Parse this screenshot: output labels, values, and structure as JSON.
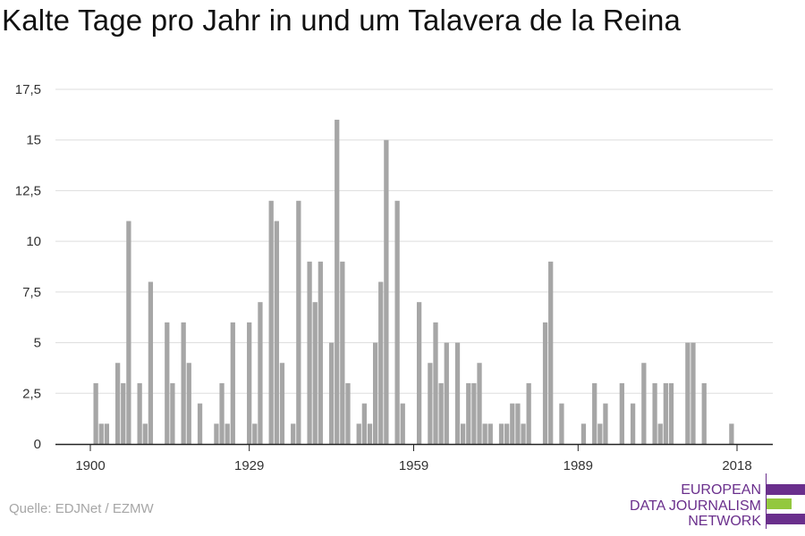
{
  "title": "Kalte Tage pro Jahr in und um Talavera de la Reina",
  "source": "Quelle: EDJNet / EZMW",
  "logo": {
    "lines": [
      "EUROPEAN",
      "DATA JOURNALISM",
      "NETWORK"
    ],
    "colors": {
      "purple": "#6a2f8c",
      "green": "#93c83e"
    }
  },
  "colors": {
    "bar": "#a6a6a6",
    "grid": "#dddddd",
    "axis": "#222222"
  },
  "chart_data": {
    "type": "bar",
    "title": "Kalte Tage pro Jahr in und um Talavera de la Reina",
    "xlabel": "",
    "ylabel": "",
    "ylim": [
      0,
      17.5
    ],
    "xlim": [
      1900,
      2018
    ],
    "grid": true,
    "y_ticks": [
      0,
      2.5,
      5,
      7.5,
      10,
      12.5,
      15,
      17.5
    ],
    "y_tick_labels": [
      "0",
      "2,5",
      "5",
      "7,5",
      "10",
      "12,5",
      "15",
      "17,5"
    ],
    "x_ticks": [
      1900,
      1929,
      1959,
      1989,
      2018
    ],
    "x_tick_labels": [
      "1900",
      "1929",
      "1959",
      "1989",
      "2018"
    ],
    "categories": [
      1900,
      1901,
      1902,
      1903,
      1904,
      1905,
      1906,
      1907,
      1908,
      1909,
      1910,
      1911,
      1912,
      1913,
      1914,
      1915,
      1916,
      1917,
      1918,
      1919,
      1920,
      1921,
      1922,
      1923,
      1924,
      1925,
      1926,
      1927,
      1928,
      1929,
      1930,
      1931,
      1932,
      1933,
      1934,
      1935,
      1936,
      1937,
      1938,
      1939,
      1940,
      1941,
      1942,
      1943,
      1944,
      1945,
      1946,
      1947,
      1948,
      1949,
      1950,
      1951,
      1952,
      1953,
      1954,
      1955,
      1956,
      1957,
      1958,
      1959,
      1960,
      1961,
      1962,
      1963,
      1964,
      1965,
      1966,
      1967,
      1968,
      1969,
      1970,
      1971,
      1972,
      1973,
      1974,
      1975,
      1976,
      1977,
      1978,
      1979,
      1980,
      1981,
      1982,
      1983,
      1984,
      1985,
      1986,
      1987,
      1988,
      1989,
      1990,
      1991,
      1992,
      1993,
      1994,
      1995,
      1996,
      1997,
      1998,
      1999,
      2000,
      2001,
      2002,
      2003,
      2004,
      2005,
      2006,
      2007,
      2008,
      2009,
      2010,
      2011,
      2012,
      2013,
      2014,
      2015,
      2016,
      2017,
      2018
    ],
    "values": [
      0,
      3,
      1,
      1,
      0,
      4,
      3,
      11,
      0,
      3,
      1,
      8,
      0,
      0,
      6,
      3,
      0,
      6,
      4,
      0,
      2,
      0,
      0,
      1,
      3,
      1,
      6,
      0,
      0,
      6,
      1,
      7,
      0,
      12,
      11,
      4,
      0,
      1,
      12,
      0,
      9,
      7,
      9,
      0,
      5,
      16,
      9,
      3,
      0,
      1,
      2,
      1,
      5,
      8,
      15,
      0,
      12,
      2,
      0,
      0,
      7,
      0,
      4,
      6,
      3,
      5,
      0,
      5,
      1,
      3,
      3,
      4,
      1,
      1,
      0,
      1,
      1,
      2,
      2,
      1,
      3,
      0,
      0,
      6,
      9,
      0,
      2,
      0,
      0,
      0,
      1,
      0,
      3,
      1,
      2,
      0,
      0,
      3,
      0,
      2,
      0,
      4,
      0,
      3,
      1,
      3,
      3,
      0,
      0,
      5,
      5,
      0,
      3,
      0,
      0,
      0,
      0,
      1,
      0
    ]
  }
}
